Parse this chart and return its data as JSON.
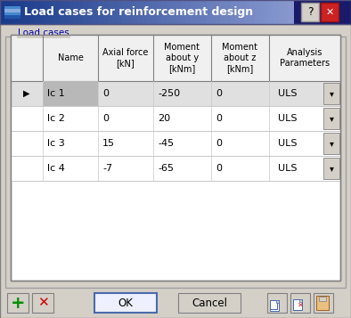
{
  "title": "Load cases for reinforcement design",
  "group_label": "Load cases",
  "col_headers": [
    "",
    "Name",
    "Axial force\n[kN]",
    "Moment\nabout y\n[kNm]",
    "Moment\nabout z\n[kNm]",
    "Analysis\nParameters"
  ],
  "rows": [
    [
      "lc 1",
      "0",
      "-250",
      "0",
      "ULS"
    ],
    [
      "lc 2",
      "0",
      "20",
      "0",
      "ULS"
    ],
    [
      "lc 3",
      "15",
      "-45",
      "0",
      "ULS"
    ],
    [
      "lc 4",
      "-7",
      "-65",
      "0",
      "ULS"
    ]
  ],
  "selected_row": 0,
  "fig_bg": "#d4d0c8",
  "title_bar_left": "#1a3a8a",
  "title_bar_right": "#6080c0",
  "title_text_color": "#ffffff",
  "group_label_color": "#0000aa",
  "table_bg": "#ffffff",
  "selected_name_bg": "#b0b0b0",
  "row_sep_color": "#c8c8c8",
  "col_sep_color": "#c8c8c8",
  "header_sep_color": "#808080",
  "outer_border": "#808080",
  "btn_face": "#d4d0c8",
  "btn_border": "#808080",
  "ok_border": "#4a6aaa",
  "plus_color": "#009000",
  "x_color": "#cc0000"
}
